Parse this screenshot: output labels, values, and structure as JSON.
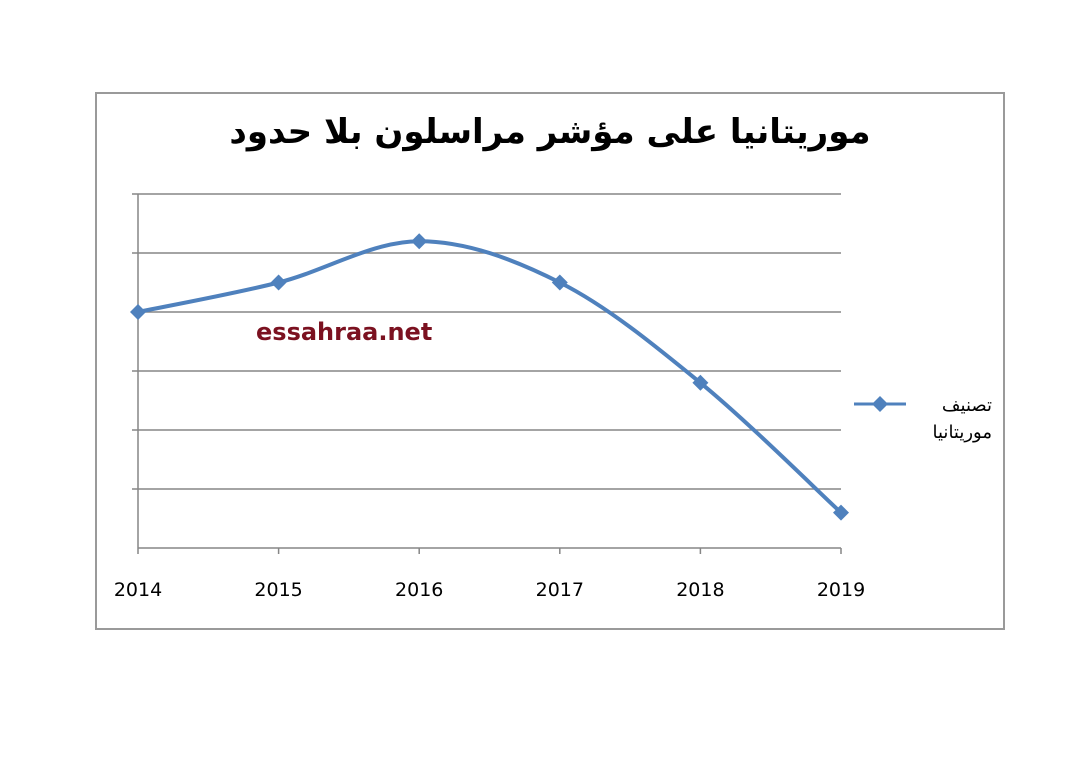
{
  "chart_data": {
    "type": "line",
    "title": "موريتانيا على مؤشر مراسلون بلا حدود",
    "x": [
      "2014",
      "2015",
      "2016",
      "2017",
      "2018",
      "2019"
    ],
    "series": [
      {
        "name": "تصنيف موريتانيا",
        "values": [
          4.0,
          4.5,
          5.2,
          4.5,
          2.8,
          0.6
        ],
        "color": "#4f81bd"
      }
    ],
    "ylim": [
      0,
      6
    ],
    "grid": true,
    "y_tick_labels_shown": false,
    "legend_position": "right",
    "marker": "diamond"
  },
  "watermark": "essahraa.net"
}
